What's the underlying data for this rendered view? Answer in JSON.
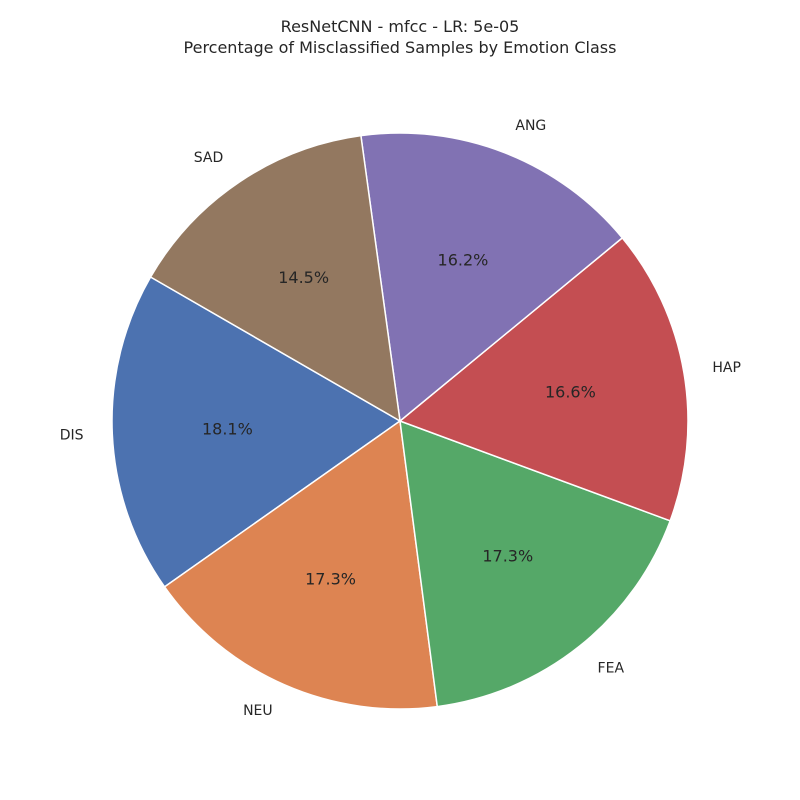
{
  "chart_data": {
    "type": "pie",
    "title": "ResNetCNN - mfcc - LR: 5e-05",
    "subtitle": "Percentage of Misclassified Samples by Emotion Class",
    "slices": [
      {
        "label": "DIS",
        "value": 18.1,
        "pct_label": "18.1%",
        "color": "#4c72b0"
      },
      {
        "label": "NEU",
        "value": 17.3,
        "pct_label": "17.3%",
        "color": "#dd8452"
      },
      {
        "label": "FEA",
        "value": 17.3,
        "pct_label": "17.3%",
        "color": "#55a868"
      },
      {
        "label": "HAP",
        "value": 16.6,
        "pct_label": "16.6%",
        "color": "#c44e52"
      },
      {
        "label": "ANG",
        "value": 16.2,
        "pct_label": "16.2%",
        "color": "#8172b3"
      },
      {
        "label": "SAD",
        "value": 14.5,
        "pct_label": "14.5%",
        "color": "#937860"
      }
    ],
    "start_angle_deg": 150,
    "direction": "counterclockwise",
    "wedge_edge_color": "#ffffff"
  }
}
